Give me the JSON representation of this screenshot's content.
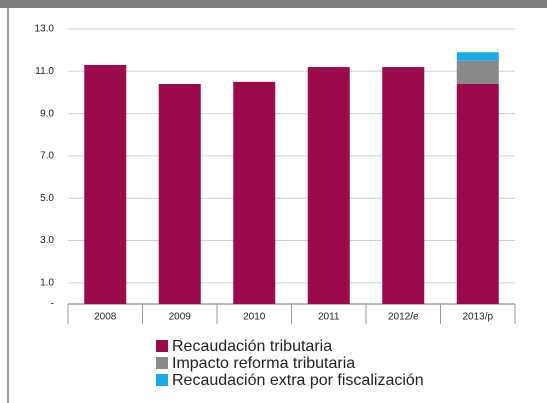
{
  "chart_data": {
    "type": "stacked-bar",
    "categories": [
      "2008",
      "2009",
      "2010",
      "2011",
      "2012/e",
      "2013/p"
    ],
    "series": [
      {
        "name": "Recaudación tributaria",
        "color": "#9b0a4a",
        "values": [
          11.3,
          10.4,
          10.5,
          11.2,
          11.2,
          10.4
        ]
      },
      {
        "name": "Impacto reforma tributaria",
        "color": "#898989",
        "values": [
          null,
          null,
          null,
          null,
          null,
          1.1
        ]
      },
      {
        "name": "Recaudación extra por fiscalización",
        "color": "#1aabe6",
        "values": [
          null,
          null,
          null,
          null,
          null,
          0.4
        ]
      }
    ],
    "ylim": [
      0,
      13
    ],
    "yticks": [
      {
        "value": 0,
        "label": "-"
      },
      {
        "value": 1,
        "label": "1.0"
      },
      {
        "value": 3,
        "label": "3.0"
      },
      {
        "value": 5,
        "label": "5.0"
      },
      {
        "value": 7,
        "label": "7.0"
      },
      {
        "value": 9,
        "label": "9.0"
      },
      {
        "value": 11,
        "label": "11.0"
      },
      {
        "value": 13,
        "label": "13.0"
      }
    ],
    "grid": true
  }
}
